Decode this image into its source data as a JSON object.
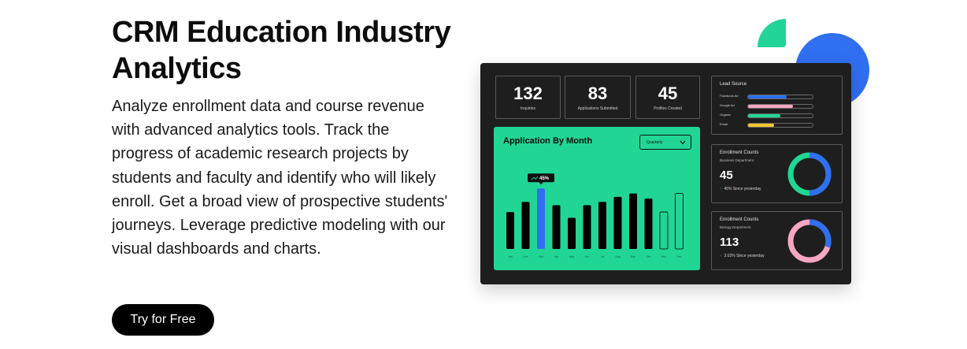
{
  "hero": {
    "title": "CRM Education Industry Analytics",
    "description": "Analyze enrollment data and course revenue with advanced analytics tools. Track the progress of academic research projects by students and faculty and identify who will likely enroll. Get a broad view of prospective students' journeys. Leverage predictive modeling with our visual dashboards and charts.",
    "cta_label": "Try for Free"
  },
  "colors": {
    "accent_green": "#21d695",
    "accent_blue": "#2f6ff0",
    "dashboard_bg": "#1e1e1e",
    "pink": "#f5a6c2",
    "yellow": "#f7c531"
  },
  "dashboard": {
    "stats": [
      {
        "value": "132",
        "label": "Inquiries"
      },
      {
        "value": "83",
        "label": "Applications Submitted"
      },
      {
        "value": "45",
        "label": "Profiles Created"
      }
    ],
    "chart": {
      "title": "Application By Month",
      "dropdown_value": "Quarterly",
      "dropdown_icon": "chevron-down-icon",
      "tooltip": "45%",
      "tooltip_icon": "trend-up-icon"
    },
    "lead_source": {
      "title": "Lead Source",
      "items": [
        {
          "label": "Facebook Ad",
          "value": 0.6,
          "color": "#2f6ff0"
        },
        {
          "label": "Google Ad",
          "value": 0.7,
          "color": "#f5a6c2"
        },
        {
          "label": "Organic",
          "value": 0.5,
          "color": "#21d695"
        },
        {
          "label": "Email",
          "value": 0.4,
          "color": "#f7c531"
        }
      ]
    },
    "enrollment_cards": [
      {
        "title": "Enrollment Counts",
        "subtitle": "Business Department",
        "value": "45",
        "trend": "45% Since yesterday",
        "donut_share": 0.5,
        "donut_colors": [
          "#2f6ff0",
          "#21d695"
        ]
      },
      {
        "title": "Enrollment Counts",
        "subtitle": "Biology Department",
        "value": "113",
        "trend": "3.02% Since yesterday",
        "donut_share": 0.3,
        "donut_colors": [
          "#2f6ff0",
          "#f5a6c2"
        ]
      }
    ]
  },
  "chart_data": {
    "type": "bar",
    "title": "Application By Month",
    "categories": [
      "Jan",
      "Feb",
      "Mar",
      "Apr",
      "May",
      "Jun",
      "Jul",
      "Aug",
      "Sep",
      "Oct",
      "Nov",
      "Dec"
    ],
    "values": [
      44,
      56,
      72,
      52,
      37,
      52,
      56,
      62,
      66,
      60,
      44,
      66
    ],
    "highlighted_index": 2,
    "highlight_label": "45%",
    "ylim": [
      0,
      75
    ]
  }
}
